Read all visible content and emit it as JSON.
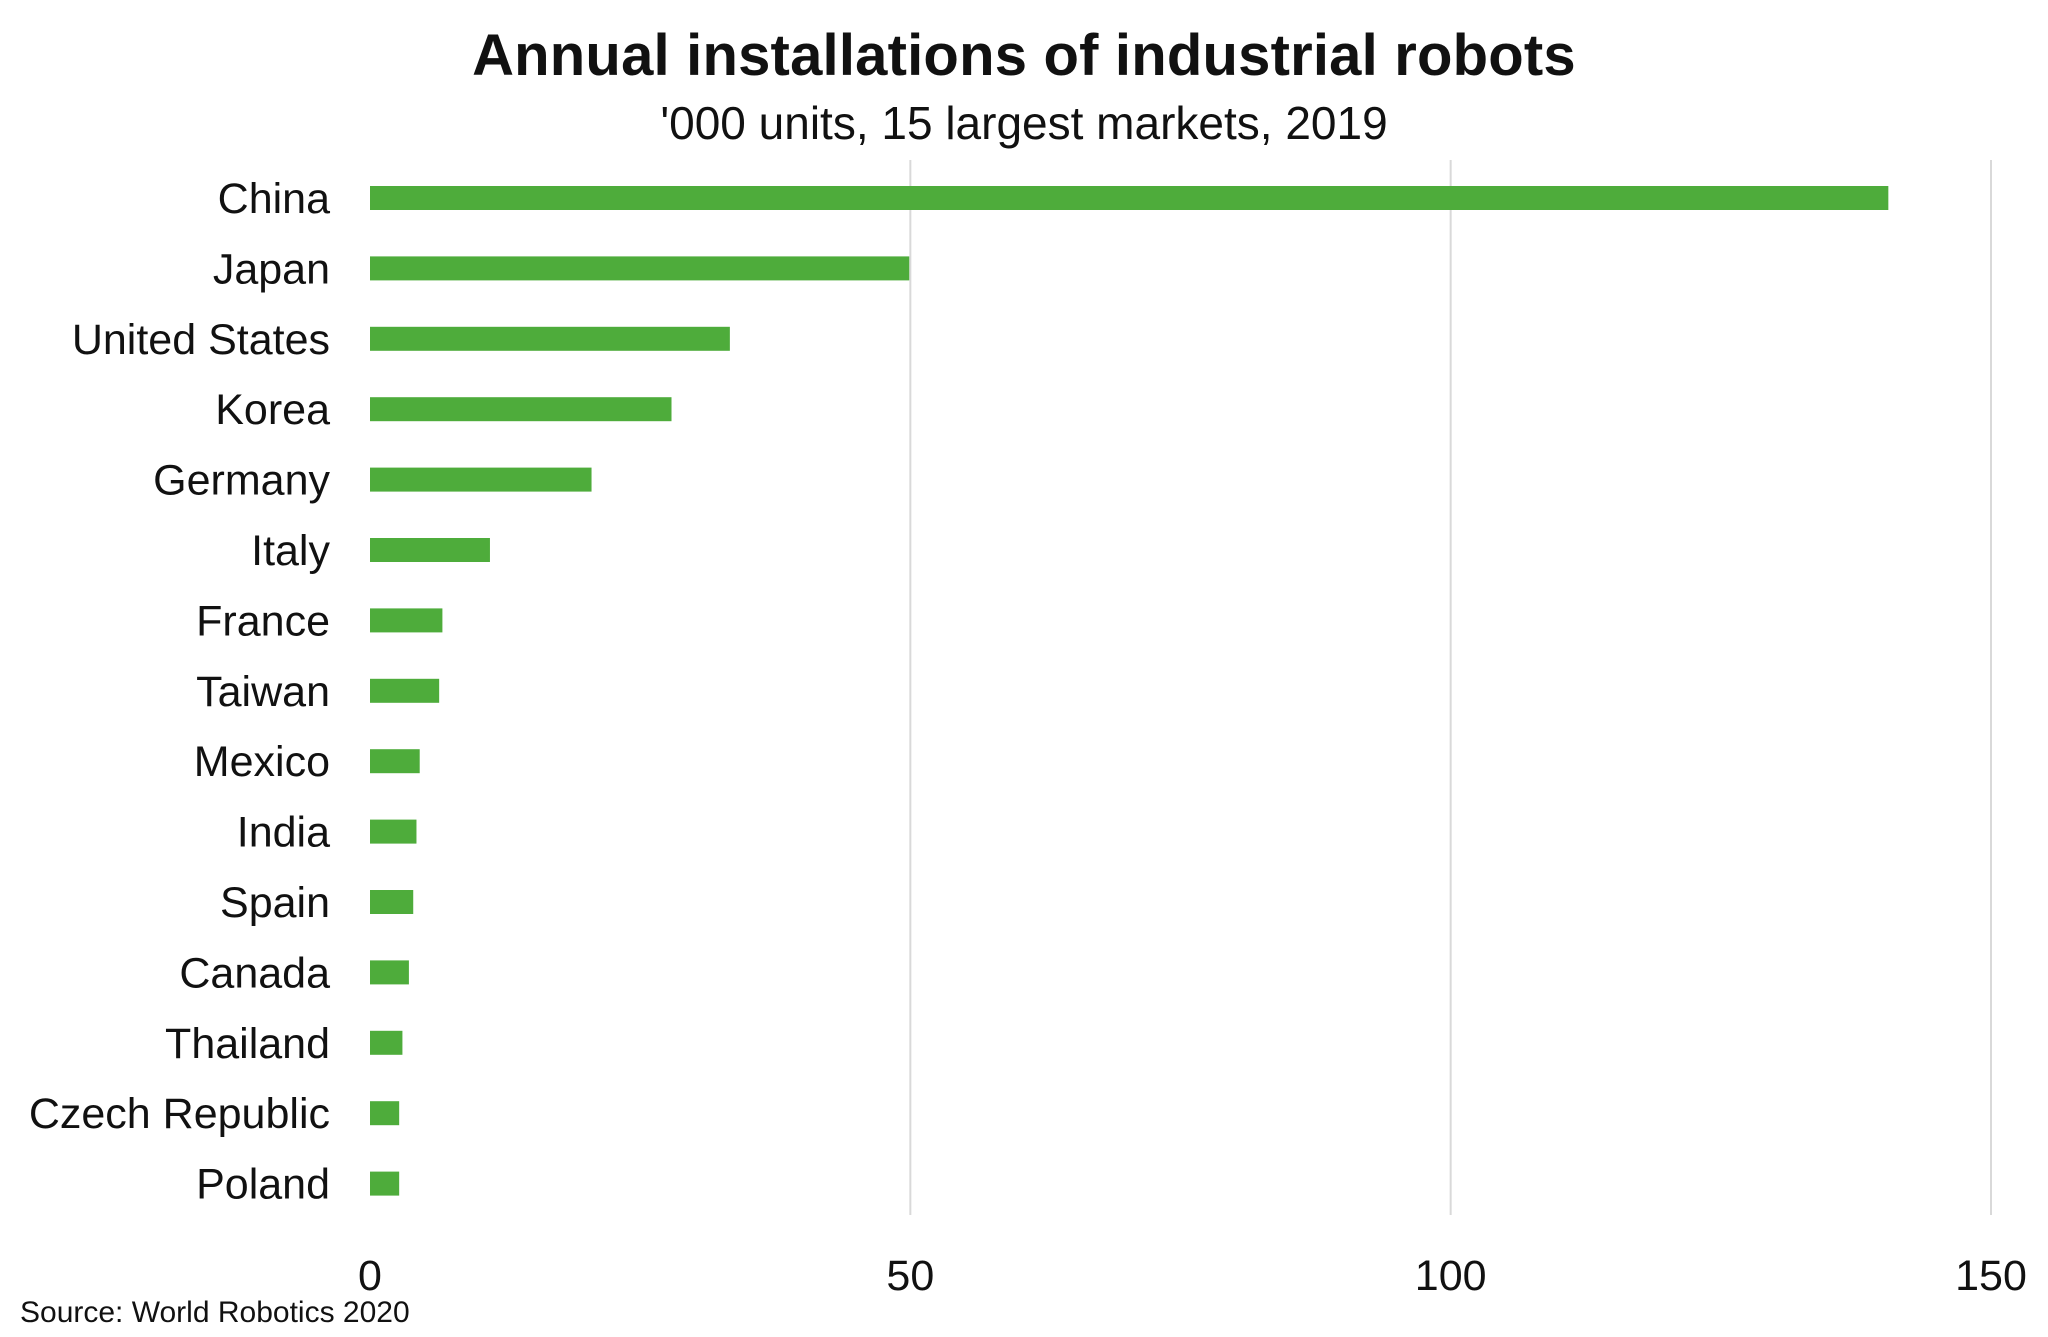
{
  "chart_data": {
    "type": "bar",
    "orientation": "horizontal",
    "title": "Annual installations of industrial robots",
    "subtitle": "'000 units, 15 largest markets, 2019",
    "source": "Source: World Robotics 2020",
    "categories": [
      "China",
      "Japan",
      "United States",
      "Korea",
      "Germany",
      "Italy",
      "France",
      "Taiwan",
      "Mexico",
      "India",
      "Spain",
      "Canada",
      "Thailand",
      "Czech Republic",
      "Poland"
    ],
    "values": [
      140.5,
      49.9,
      33.3,
      27.9,
      20.5,
      11.1,
      6.7,
      6.4,
      4.6,
      4.3,
      4.0,
      3.6,
      3.0,
      2.7,
      2.7
    ],
    "xlim": [
      0,
      150
    ],
    "xticks": [
      0,
      50,
      100,
      150
    ],
    "xtick_labels": [
      "0",
      "50",
      "100",
      "150"
    ],
    "grid": "vertical",
    "legend": "none",
    "bar_color": "#4eac3b",
    "grid_color": "#d9d9d9"
  }
}
